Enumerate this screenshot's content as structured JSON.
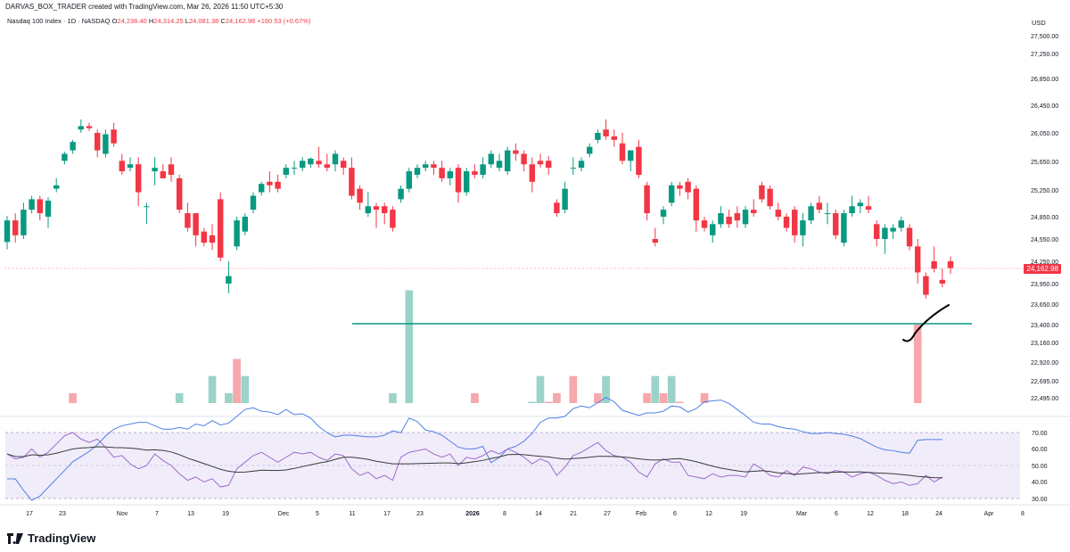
{
  "header": {
    "credit": "DARVAS_BOX_TRADER created with TradingView.com, Mar 26, 2026 11:50 UTC+5:30"
  },
  "legend": {
    "symbol": "Nasdaq 100 Index · 1D · NASDAQ",
    "o_label": "O",
    "o": "24,236.40",
    "h_label": "H",
    "h": "24,314.25",
    "l_label": "L",
    "l": "24,081.38",
    "c_label": "C",
    "c": "24,162.98",
    "change": "+160.53 (+0.67%)"
  },
  "price_axis": {
    "currency": "USD",
    "ticks": [
      "27,500.00",
      "27,250.00",
      "26,850.00",
      "26,450.00",
      "26,050.00",
      "25,650.00",
      "25,250.00",
      "24,850.00",
      "24,550.00",
      "24,250.00",
      "23,950.00",
      "23,650.00",
      "23,400.00",
      "23,160.00",
      "22,920.00",
      "22,695.00",
      "22,495.00"
    ],
    "last_price": "24,162.98"
  },
  "rsi_axis": {
    "ticks": [
      "70.00",
      "60.00",
      "50.00",
      "40.00",
      "30.00"
    ]
  },
  "time_axis": {
    "labels": [
      "17",
      "23",
      "Nov",
      "7",
      "13",
      "19",
      "Dec",
      "5",
      "11",
      "17",
      "23",
      "2026",
      "8",
      "14",
      "21",
      "27",
      "Feb",
      "6",
      "12",
      "19",
      "Mar",
      "6",
      "12",
      "18",
      "24",
      "Apr",
      "8"
    ]
  },
  "brand": {
    "name": "TradingView"
  },
  "colors": {
    "up": "#089981",
    "down": "#f23645",
    "vol_up": "#9bd3c9",
    "vol_down": "#f6a8ab",
    "ma": "#4f7fe5",
    "hline": "#089981",
    "rsi": "#9c6bc9",
    "rsi_ma": "#3a3a3a",
    "rsi_band": "#f1ecfa"
  },
  "chart_data": {
    "type": "candlestick",
    "price_series": [
      [
        24510,
        24860,
        24410,
        24800
      ],
      [
        24800,
        24900,
        24500,
        24600
      ],
      [
        24600,
        25050,
        24550,
        24950
      ],
      [
        24950,
        25150,
        24900,
        25100
      ],
      [
        25100,
        25150,
        24800,
        24900
      ],
      [
        24850,
        25130,
        24700,
        25080
      ],
      [
        25250,
        25400,
        25200,
        25300
      ],
      [
        25650,
        25780,
        25600,
        25750
      ],
      [
        25800,
        25950,
        25750,
        25920
      ],
      [
        26100,
        26250,
        26050,
        26150
      ],
      [
        26150,
        26200,
        26080,
        26120
      ],
      [
        26050,
        26100,
        25700,
        25800
      ],
      [
        25750,
        26100,
        25700,
        26030
      ],
      [
        26100,
        26200,
        25850,
        25900
      ],
      [
        25650,
        25750,
        25450,
        25500
      ],
      [
        25550,
        25700,
        25500,
        25600
      ],
      [
        25600,
        25700,
        25000,
        25200
      ],
      [
        25000,
        25050,
        24750,
        25000
      ],
      [
        25500,
        25700,
        25300,
        25550
      ],
      [
        25500,
        25600,
        25400,
        25400
      ],
      [
        25600,
        25700,
        25350,
        25450
      ],
      [
        25400,
        25450,
        24900,
        24950
      ],
      [
        24900,
        25050,
        24650,
        24700
      ],
      [
        24900,
        24900,
        24450,
        24600
      ],
      [
        24650,
        24700,
        24450,
        24500
      ],
      [
        24600,
        24750,
        24400,
        24500
      ],
      [
        25100,
        25200,
        24250,
        24300
      ],
      [
        23950,
        24250,
        23820,
        24050
      ],
      [
        24450,
        24850,
        24400,
        24800
      ],
      [
        24650,
        24900,
        24600,
        24850
      ],
      [
        24950,
        25200,
        24900,
        25150
      ],
      [
        25200,
        25350,
        25150,
        25320
      ],
      [
        25350,
        25500,
        25200,
        25300
      ],
      [
        25350,
        25450,
        25200,
        25250
      ],
      [
        25450,
        25600,
        25400,
        25550
      ],
      [
        25550,
        25650,
        25450,
        25550
      ],
      [
        25550,
        25700,
        25500,
        25650
      ],
      [
        25600,
        25700,
        25550,
        25680
      ],
      [
        25650,
        25850,
        25550,
        25600
      ],
      [
        25600,
        25750,
        25500,
        25550
      ],
      [
        25600,
        25800,
        25500,
        25750
      ],
      [
        25650,
        25700,
        25450,
        25550
      ],
      [
        25550,
        25700,
        25100,
        25150
      ],
      [
        25250,
        25300,
        24950,
        25050
      ],
      [
        24900,
        25200,
        24850,
        25000
      ],
      [
        25000,
        25050,
        24700,
        24950
      ],
      [
        25000,
        25050,
        24750,
        24900
      ],
      [
        24950,
        25000,
        24650,
        24700
      ],
      [
        25100,
        25300,
        25050,
        25250
      ],
      [
        25250,
        25550,
        25200,
        25500
      ],
      [
        25450,
        25600,
        25400,
        25550
      ],
      [
        25550,
        25650,
        25500,
        25600
      ],
      [
        25600,
        25650,
        25450,
        25550
      ],
      [
        25550,
        25650,
        25350,
        25400
      ],
      [
        25400,
        25550,
        25300,
        25500
      ],
      [
        25550,
        25600,
        25050,
        25200
      ],
      [
        25200,
        25550,
        25150,
        25500
      ],
      [
        25500,
        25600,
        25400,
        25450
      ],
      [
        25450,
        25700,
        25400,
        25600
      ],
      [
        25600,
        25800,
        25550,
        25750
      ],
      [
        25550,
        25750,
        25500,
        25650
      ],
      [
        25500,
        25850,
        25450,
        25800
      ],
      [
        25800,
        25900,
        25650,
        25750
      ],
      [
        25750,
        25800,
        25500,
        25600
      ],
      [
        25600,
        25700,
        25200,
        25350
      ],
      [
        25650,
        25750,
        25550,
        25600
      ],
      [
        25650,
        25720,
        25450,
        25550
      ],
      [
        25050,
        25100,
        24850,
        24900
      ],
      [
        24950,
        25350,
        24900,
        25250
      ],
      [
        25550,
        25700,
        25450,
        25550
      ],
      [
        25550,
        25700,
        25500,
        25650
      ],
      [
        25750,
        25900,
        25700,
        25850
      ],
      [
        25950,
        26100,
        25900,
        26050
      ],
      [
        26100,
        26250,
        25950,
        26000
      ],
      [
        26000,
        26100,
        25850,
        25950
      ],
      [
        25900,
        26050,
        25600,
        25650
      ],
      [
        25650,
        25800,
        25500,
        25800
      ],
      [
        25850,
        25950,
        25400,
        25450
      ],
      [
        25300,
        25350,
        24800,
        24900
      ],
      [
        24550,
        24700,
        24450,
        24500
      ],
      [
        24850,
        25000,
        24750,
        24950
      ],
      [
        25050,
        25350,
        25000,
        25300
      ],
      [
        25300,
        25350,
        25150,
        25250
      ],
      [
        25350,
        25400,
        25100,
        25200
      ],
      [
        25250,
        25300,
        24650,
        24800
      ],
      [
        24800,
        24850,
        24650,
        24700
      ],
      [
        24600,
        24800,
        24500,
        24750
      ],
      [
        24750,
        25000,
        24700,
        24900
      ],
      [
        24850,
        24950,
        24700,
        24750
      ],
      [
        24900,
        25000,
        24700,
        24800
      ],
      [
        24750,
        25000,
        24700,
        24950
      ],
      [
        24950,
        25100,
        24850,
        24900
      ],
      [
        25300,
        25350,
        25050,
        25100
      ],
      [
        25250,
        25300,
        24950,
        25000
      ],
      [
        24950,
        25050,
        24800,
        24850
      ],
      [
        24850,
        24900,
        24650,
        24700
      ],
      [
        24950,
        25000,
        24500,
        24600
      ],
      [
        24600,
        24900,
        24450,
        24800
      ],
      [
        24800,
        25050,
        24750,
        25000
      ],
      [
        25050,
        25150,
        24900,
        24950
      ],
      [
        24900,
        25050,
        24750,
        24900
      ],
      [
        24900,
        24950,
        24550,
        24600
      ],
      [
        24500,
        24950,
        24450,
        24900
      ],
      [
        24900,
        25150,
        24850,
        25000
      ],
      [
        25000,
        25100,
        24900,
        25050
      ],
      [
        25000,
        25150,
        24900,
        24950
      ],
      [
        24750,
        24800,
        24450,
        24550
      ],
      [
        24550,
        24750,
        24350,
        24700
      ],
      [
        24650,
        24750,
        24550,
        24700
      ],
      [
        24700,
        24850,
        24650,
        24800
      ],
      [
        24700,
        24750,
        24400,
        24450
      ],
      [
        24450,
        24550,
        23950,
        24100
      ],
      [
        24050,
        24100,
        23750,
        23800
      ],
      [
        24250,
        24450,
        24100,
        24150
      ],
      [
        24000,
        24150,
        23900,
        23950
      ],
      [
        24250,
        24315,
        24080,
        24160
      ]
    ],
    "volume_series": [
      [
        21.6,
        0
      ],
      [
        21.6,
        0
      ],
      [
        21.2,
        1
      ],
      [
        21.0,
        0
      ],
      [
        21.6,
        0
      ],
      [
        22.0,
        1
      ],
      [
        22.2,
        0
      ],
      [
        22.4,
        0
      ],
      [
        22.6,
        0
      ],
      [
        22.4,
        0
      ],
      [
        22.2,
        0
      ],
      [
        22.4,
        0
      ],
      [
        22.2,
        1
      ],
      [
        21.8,
        1
      ],
      [
        22.0,
        0
      ],
      [
        22.2,
        0
      ],
      [
        22.4,
        0
      ],
      [
        22.4,
        0
      ],
      [
        22.2,
        0
      ],
      [
        22.0,
        1
      ],
      [
        22.2,
        0
      ],
      [
        22.6,
        1
      ],
      [
        22.0,
        0
      ],
      [
        22.4,
        0
      ],
      [
        21.8,
        0
      ],
      [
        22.8,
        1
      ],
      [
        21.9,
        0
      ],
      [
        22.6,
        1
      ],
      [
        23.0,
        0
      ],
      [
        22.8,
        1
      ],
      [
        22.4,
        1
      ],
      [
        22.2,
        0
      ],
      [
        21.9,
        1
      ],
      [
        22.1,
        0
      ],
      [
        22.4,
        1
      ],
      [
        22.2,
        0
      ],
      [
        22.0,
        1
      ],
      [
        22.1,
        0
      ],
      [
        22.0,
        1
      ],
      [
        22.1,
        1
      ],
      [
        21.9,
        0
      ],
      [
        22.4,
        1
      ],
      [
        21.9,
        0
      ],
      [
        22.0,
        0
      ],
      [
        22.3,
        0
      ],
      [
        22.2,
        1
      ],
      [
        22.2,
        0
      ],
      [
        22.6,
        1
      ],
      [
        21.8,
        0
      ],
      [
        23.8,
        1
      ],
      [
        21.5,
        1
      ],
      [
        21.4,
        0
      ],
      [
        21.7,
        1
      ],
      [
        21.6,
        1
      ],
      [
        21.6,
        0
      ],
      [
        21.5,
        0
      ],
      [
        22.0,
        0
      ],
      [
        22.6,
        0
      ],
      [
        22.1,
        1
      ],
      [
        21.9,
        1
      ],
      [
        22.1,
        0
      ],
      [
        22.4,
        1
      ],
      [
        22.0,
        0
      ],
      [
        22.2,
        1
      ],
      [
        22.5,
        1
      ],
      [
        22.8,
        1
      ],
      [
        22.5,
        0
      ],
      [
        22.6,
        0
      ],
      [
        22.3,
        1
      ],
      [
        22.8,
        0
      ],
      [
        22.4,
        0
      ],
      [
        22.2,
        1
      ],
      [
        22.6,
        0
      ],
      [
        22.8,
        1
      ],
      [
        22.0,
        1
      ],
      [
        21.8,
        1
      ],
      [
        22.2,
        1
      ],
      [
        22.3,
        1
      ],
      [
        22.6,
        0
      ],
      [
        22.8,
        1
      ],
      [
        22.6,
        0
      ],
      [
        22.8,
        1
      ],
      [
        22.5,
        0
      ],
      [
        22.2,
        0
      ],
      [
        22.4,
        1
      ],
      [
        22.6,
        0
      ],
      [
        22.3,
        1
      ],
      [
        22.4,
        0
      ],
      [
        22.2,
        1
      ],
      [
        22.1,
        1
      ],
      [
        21.9,
        1
      ],
      [
        22.0,
        1
      ],
      [
        22.3,
        0
      ],
      [
        22.2,
        1
      ],
      [
        22.1,
        0
      ],
      [
        22.4,
        1
      ],
      [
        22.2,
        1
      ],
      [
        22.1,
        1
      ],
      [
        22.0,
        1
      ],
      [
        22.1,
        1
      ],
      [
        22.0,
        0
      ],
      [
        21.9,
        0
      ],
      [
        22.2,
        1
      ],
      [
        22.0,
        1
      ],
      [
        21.8,
        0
      ],
      [
        21.9,
        1
      ],
      [
        21.7,
        1
      ],
      [
        21.8,
        0
      ],
      [
        21.9,
        0
      ],
      [
        21.9,
        1
      ],
      [
        21.9,
        0
      ],
      [
        23.4,
        0
      ],
      [
        22.3,
        0
      ],
      [
        22.0,
        0
      ],
      [
        21.8,
        0
      ]
    ],
    "rsi_series": [
      57,
      54,
      55,
      60,
      55,
      58,
      63,
      68,
      70,
      66,
      64,
      66,
      61,
      55,
      56,
      51,
      48,
      50,
      57,
      53,
      50,
      45,
      41,
      43,
      40,
      42,
      37,
      38,
      48,
      52,
      56,
      58,
      55,
      52,
      55,
      58,
      57,
      58,
      55,
      53,
      57,
      56,
      48,
      44,
      46,
      42,
      44,
      41,
      55,
      58,
      59,
      60,
      57,
      55,
      57,
      50,
      55,
      54,
      56,
      59,
      57,
      60,
      58,
      55,
      51,
      54,
      52,
      44,
      49,
      56,
      58,
      61,
      64,
      59,
      56,
      55,
      52,
      46,
      43,
      51,
      54,
      52,
      52,
      44,
      43,
      42,
      45,
      43,
      44,
      44,
      43,
      51,
      48,
      44,
      43,
      47,
      44,
      49,
      48,
      46,
      45,
      47,
      46,
      43,
      45,
      46,
      44,
      41,
      39,
      40,
      38,
      39,
      44,
      40,
      43
    ]
  }
}
